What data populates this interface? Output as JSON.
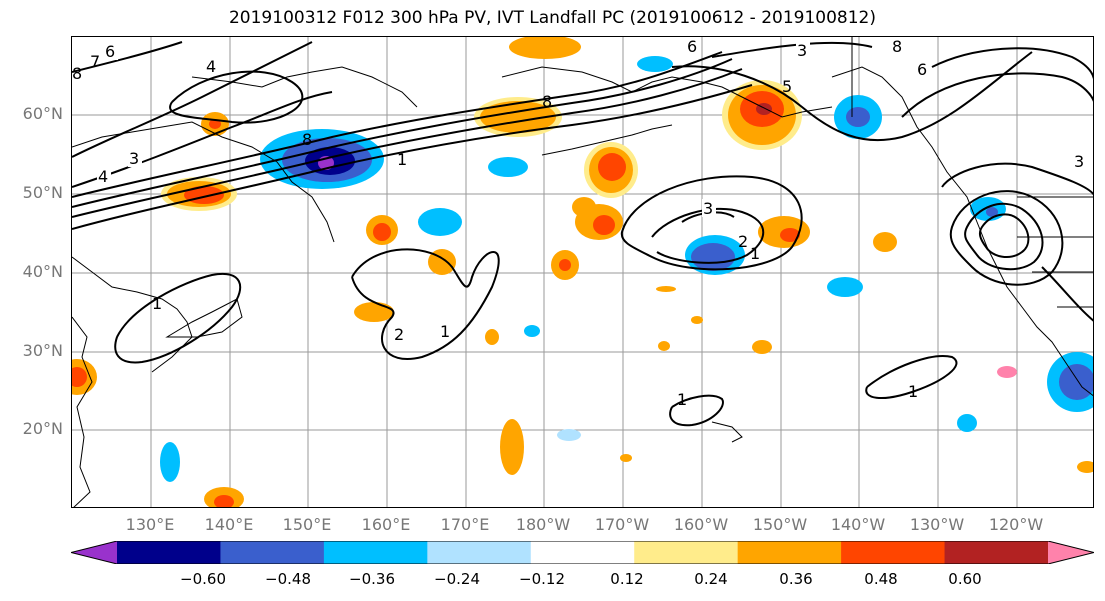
{
  "title": "2019100312 F012 300 hPa PV, IVT Landfall PC (2019100612 - 2019100812)",
  "latitude_labels": [
    "60°N",
    "50°N",
    "40°N",
    "30°N",
    "20°N"
  ],
  "longitude_labels": [
    "130°E",
    "140°E",
    "150°E",
    "160°E",
    "170°E",
    "180°W",
    "170°W",
    "160°W",
    "150°W",
    "140°W",
    "130°W",
    "120°W"
  ],
  "colorbar": {
    "ticks": [
      "−0.60",
      "−0.48",
      "−0.36",
      "−0.24",
      "−0.12",
      "0.12",
      "0.24",
      "0.36",
      "0.48",
      "0.60"
    ],
    "colors": [
      "#9932cc",
      "#00008b",
      "#3a5fcd",
      "#00bfff",
      "#b0e2ff",
      "#ffffff",
      "#ffec8b",
      "#ffa500",
      "#ff4500",
      "#b22222",
      "#ff82ab"
    ]
  },
  "contour_labels": [
    "6",
    "7",
    "4",
    "8",
    "3",
    "4",
    "8",
    "1",
    "8",
    "6",
    "3",
    "8",
    "6",
    "5",
    "3",
    "2",
    "1",
    "2",
    "1",
    "1",
    "1",
    "1",
    "3"
  ]
}
